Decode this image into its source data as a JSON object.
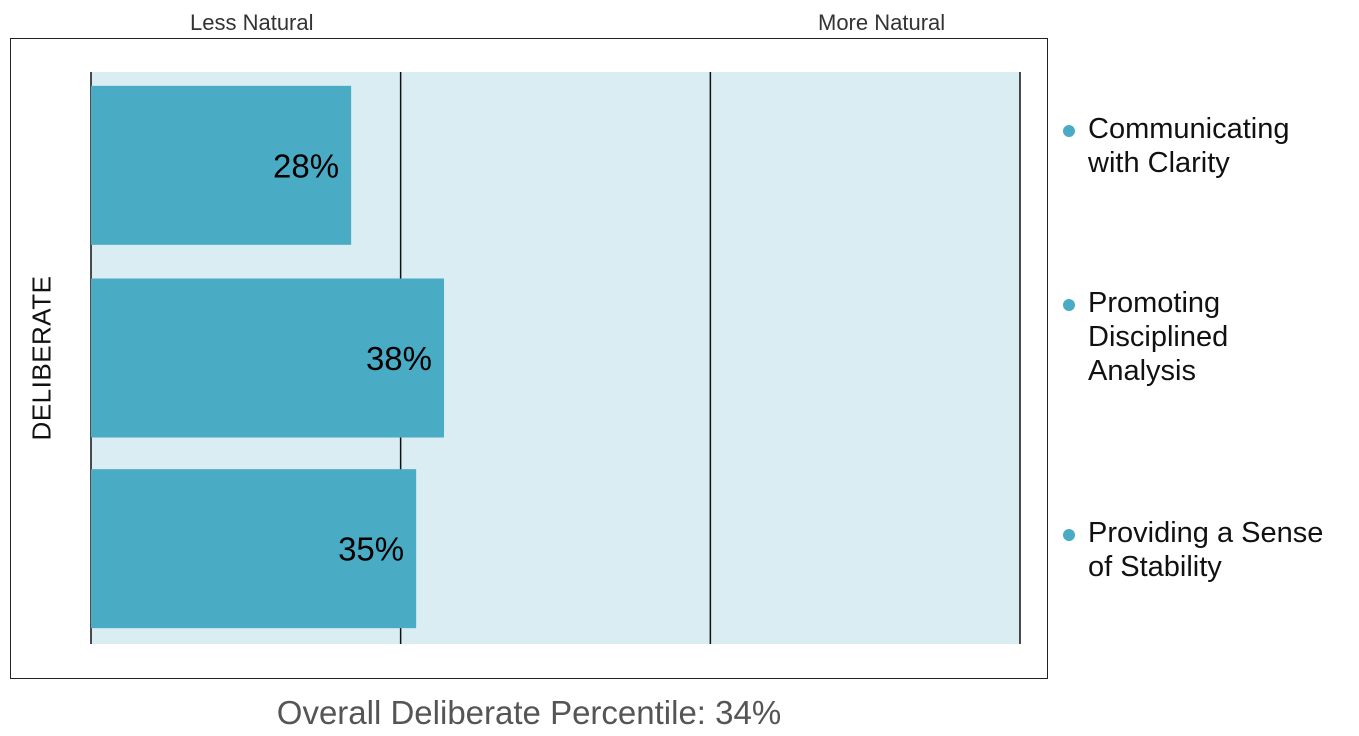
{
  "colors": {
    "bar": "#4AABC5",
    "track": "#DAEDF3",
    "divider": "#111111",
    "bullet": "#4AABC5"
  },
  "chart_data": {
    "type": "bar",
    "orientation": "horizontal",
    "categories": [
      "Communicating with Clarity",
      "Promoting Disciplined Analysis",
      "Providing a Sense of Stability"
    ],
    "values": [
      28,
      38,
      35
    ],
    "value_labels": [
      "28%",
      "38%",
      "35%"
    ],
    "xlim": [
      0,
      100
    ],
    "dividers": [
      33.33,
      66.67,
      100
    ],
    "axis_left_label": "Less Natural",
    "axis_right_label": "More Natural",
    "ylabel": "DELIBERATE",
    "legend": {
      "placement": "right",
      "items": [
        "Communicating with Clarity",
        "Promoting Disciplined Analysis",
        "Providing a Sense of Stability"
      ]
    },
    "footer": "Overall Deliberate Percentile: 34%"
  }
}
